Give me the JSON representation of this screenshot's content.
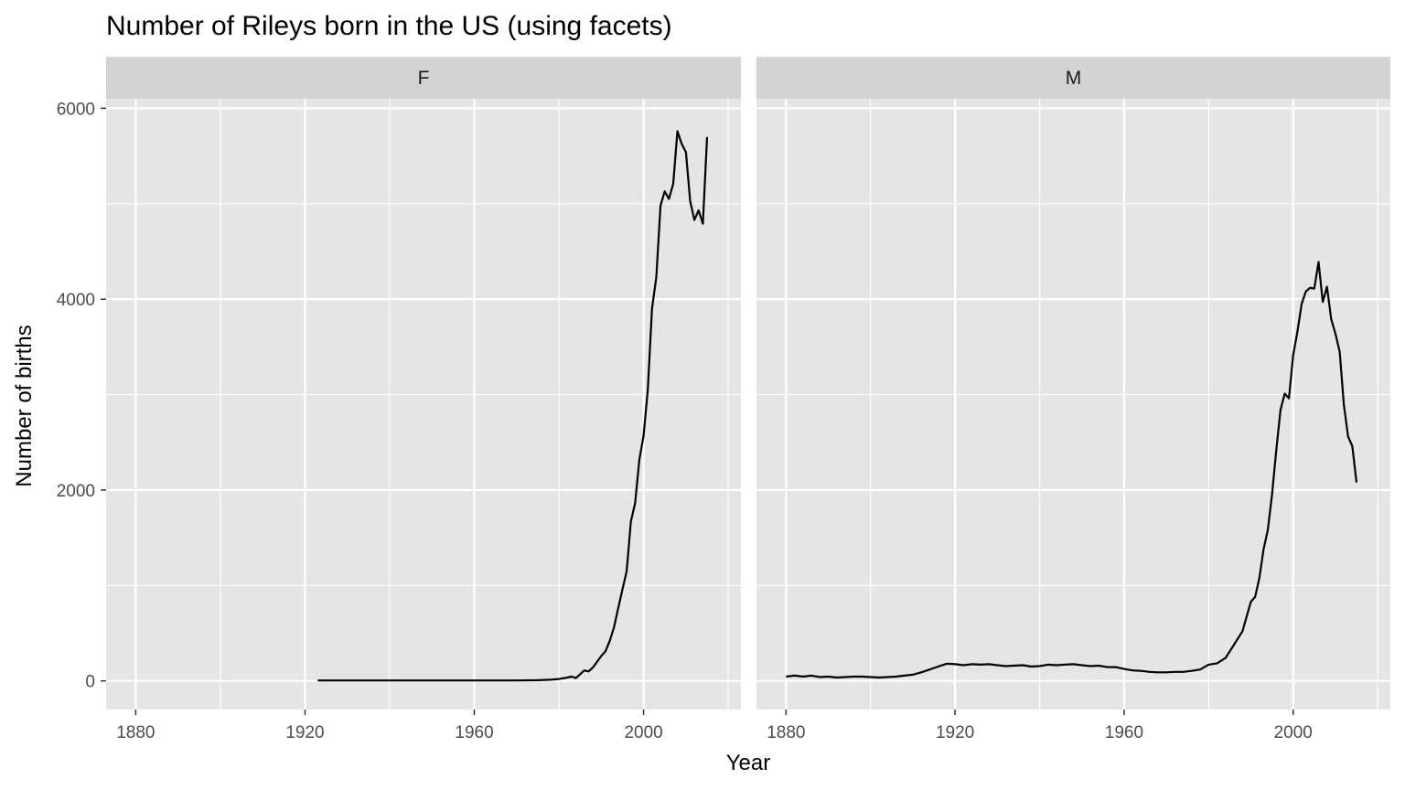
{
  "chart_data": {
    "type": "line",
    "title": "Number of Rileys born in the US (using facets)",
    "xlabel": "Year",
    "ylabel": "Number of births",
    "xlim": [
      1877,
      1892
    ],
    "ylim": [
      -300,
      6100
    ],
    "x_ticks": [
      "1880",
      "1920",
      "1960",
      "2000"
    ],
    "y_ticks": [
      "0",
      "2000",
      "4000",
      "6000"
    ],
    "grid": true,
    "legend": "none",
    "colors": {
      "panel_background": "#e5e5e5",
      "strip_background": "#d3d3d3",
      "grid": "#ffffff",
      "line": "#000000"
    },
    "facets": [
      {
        "name": "F",
        "x": [
          1923,
          1930,
          1940,
          1950,
          1960,
          1970,
          1975,
          1978,
          1980,
          1982,
          1983,
          1984,
          1985,
          1986,
          1987,
          1988,
          1989,
          1990,
          1991,
          1992,
          1993,
          1994,
          1995,
          1996,
          1997,
          1998,
          1999,
          2000,
          2001,
          2002,
          2003,
          2004,
          2005,
          2006,
          2007,
          2008,
          2009,
          2010,
          2011,
          2012,
          2013,
          2014,
          2015
        ],
        "y": [
          5,
          5,
          5,
          5,
          5,
          5,
          8,
          12,
          20,
          35,
          45,
          30,
          70,
          110,
          100,
          140,
          200,
          260,
          310,
          420,
          560,
          760,
          960,
          1150,
          1670,
          1860,
          2320,
          2570,
          3050,
          3900,
          4230,
          4980,
          5130,
          5050,
          5210,
          5760,
          5630,
          5540,
          5030,
          4830,
          4930,
          4790,
          5700
        ]
      },
      {
        "name": "M",
        "x": [
          1880,
          1882,
          1884,
          1886,
          1888,
          1890,
          1892,
          1894,
          1896,
          1898,
          1900,
          1902,
          1904,
          1906,
          1908,
          1910,
          1912,
          1914,
          1916,
          1918,
          1920,
          1922,
          1924,
          1926,
          1928,
          1930,
          1932,
          1934,
          1936,
          1938,
          1940,
          1942,
          1944,
          1946,
          1948,
          1950,
          1952,
          1954,
          1956,
          1958,
          1960,
          1962,
          1964,
          1966,
          1968,
          1970,
          1972,
          1974,
          1976,
          1978,
          1980,
          1982,
          1984,
          1986,
          1988,
          1990,
          1991,
          1992,
          1993,
          1994,
          1995,
          1996,
          1997,
          1998,
          1999,
          2000,
          2001,
          2002,
          2003,
          2004,
          2005,
          2006,
          2007,
          2008,
          2009,
          2010,
          2011,
          2012,
          2013,
          2014,
          2015
        ],
        "y": [
          45,
          55,
          45,
          55,
          40,
          45,
          35,
          40,
          45,
          45,
          40,
          35,
          40,
          45,
          55,
          65,
          90,
          120,
          150,
          180,
          175,
          165,
          175,
          170,
          175,
          165,
          155,
          160,
          165,
          150,
          155,
          170,
          165,
          170,
          175,
          165,
          155,
          160,
          145,
          145,
          125,
          110,
          105,
          95,
          90,
          90,
          95,
          95,
          105,
          120,
          170,
          185,
          240,
          380,
          520,
          830,
          880,
          1080,
          1380,
          1580,
          1950,
          2420,
          2840,
          3010,
          2960,
          3410,
          3660,
          3950,
          4080,
          4120,
          4110,
          4390,
          3970,
          4130,
          3790,
          3640,
          3450,
          2890,
          2560,
          2460,
          2080
        ]
      }
    ]
  }
}
